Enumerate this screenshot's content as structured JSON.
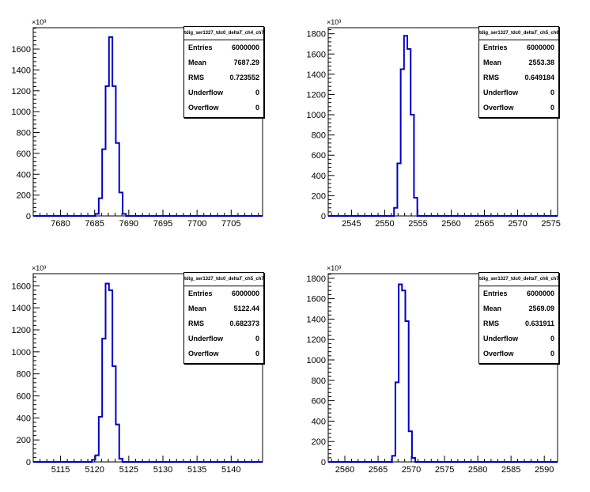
{
  "colors": {
    "histogram": "#0000c8",
    "frame": "#000000",
    "background": "#ffffff"
  },
  "chart_data": [
    {
      "type": "bar",
      "title": "tdig_ser1327_tdc0_deltaT_ch4_ch7",
      "xlim": [
        7676,
        7709.6
      ],
      "ylim": [
        0,
        1805
      ],
      "y_multiplier_label": "×10³",
      "x_ticks": [
        7680,
        7685,
        7690,
        7695,
        7700,
        7705
      ],
      "y_ticks": [
        0,
        200,
        400,
        600,
        800,
        1000,
        1200,
        1400,
        1600
      ],
      "y_tick_labels": [
        "0",
        "200",
        "400",
        "600",
        "800",
        "1000",
        "1200",
        "1400",
        "1600"
      ],
      "bin_edges": [
        7685.1,
        7685.6,
        7686.1,
        7686.6,
        7687.1,
        7687.6,
        7688.1,
        7688.6,
        7689.1,
        7689.6
      ],
      "values": [
        20,
        170,
        640,
        1245,
        1715,
        1245,
        700,
        225,
        20
      ],
      "stats": [
        {
          "key": "Entries",
          "value": "6000000"
        },
        {
          "key": "Mean",
          "value": "7687.29"
        },
        {
          "key": "RMS",
          "value": "0.723552"
        },
        {
          "key": "Underflow",
          "value": "0"
        },
        {
          "key": "Overflow",
          "value": "0"
        }
      ]
    },
    {
      "type": "bar",
      "title": "tdig_ser1327_tdc0_deltaT_ch5_ch6",
      "xlim": [
        2541.5,
        2576
      ],
      "ylim": [
        0,
        1860
      ],
      "y_multiplier_label": "×10³",
      "x_ticks": [
        2545,
        2550,
        2555,
        2560,
        2565,
        2570,
        2575
      ],
      "y_ticks": [
        0,
        200,
        400,
        600,
        800,
        1000,
        1200,
        1400,
        1600,
        1800
      ],
      "y_tick_labels": [
        "0",
        "200",
        "400",
        "600",
        "800",
        "1000",
        "1200",
        "1400",
        "1600",
        "1800"
      ],
      "bin_edges": [
        2551.4,
        2551.9,
        2552.4,
        2552.9,
        2553.4,
        2553.9,
        2554.4,
        2554.9
      ],
      "values": [
        80,
        520,
        1450,
        1780,
        1650,
        1000,
        180
      ],
      "stats": [
        {
          "key": "Entries",
          "value": "6000000"
        },
        {
          "key": "Mean",
          "value": "2553.38"
        },
        {
          "key": "RMS",
          "value": "0.649184"
        },
        {
          "key": "Underflow",
          "value": "0"
        },
        {
          "key": "Overflow",
          "value": "0"
        }
      ]
    },
    {
      "type": "bar",
      "title": "tdig_ser1327_tdc0_deltaT_ch5_ch7",
      "xlim": [
        5111,
        5144.6
      ],
      "ylim": [
        0,
        1710
      ],
      "y_multiplier_label": "×10³",
      "x_ticks": [
        5115,
        5120,
        5125,
        5130,
        5135,
        5140
      ],
      "y_ticks": [
        0,
        200,
        400,
        600,
        800,
        1000,
        1200,
        1400,
        1600
      ],
      "y_tick_labels": [
        "0",
        "200",
        "400",
        "600",
        "800",
        "1000",
        "1200",
        "1400",
        "1600"
      ],
      "bin_edges": [
        5119.6,
        5120.1,
        5120.6,
        5121.1,
        5121.6,
        5122.1,
        5122.6,
        5123.1,
        5123.6,
        5124.1
      ],
      "values": [
        20,
        60,
        410,
        1120,
        1620,
        1560,
        870,
        340,
        30
      ],
      "stats": [
        {
          "key": "Entries",
          "value": "6000000"
        },
        {
          "key": "Mean",
          "value": "5122.44"
        },
        {
          "key": "RMS",
          "value": "0.682373"
        },
        {
          "key": "Underflow",
          "value": "0"
        },
        {
          "key": "Overflow",
          "value": "0"
        }
      ]
    },
    {
      "type": "bar",
      "title": "tdig_ser1327_tdc0_deltaT_ch6_ch7",
      "xlim": [
        2557.5,
        2592
      ],
      "ylim": [
        0,
        1845
      ],
      "y_multiplier_label": "×10³",
      "x_ticks": [
        2560,
        2565,
        2570,
        2575,
        2580,
        2585,
        2590
      ],
      "y_ticks": [
        0,
        200,
        400,
        600,
        800,
        1000,
        1200,
        1400,
        1600,
        1800
      ],
      "y_tick_labels": [
        "0",
        "200",
        "400",
        "600",
        "800",
        "1000",
        "1200",
        "1400",
        "1600",
        "1800"
      ],
      "bin_edges": [
        2567.1,
        2567.6,
        2568.1,
        2568.6,
        2569.1,
        2569.6,
        2570.1,
        2570.6
      ],
      "values": [
        60,
        780,
        1740,
        1680,
        1380,
        300,
        40
      ],
      "stats": [
        {
          "key": "Entries",
          "value": "6000000"
        },
        {
          "key": "Mean",
          "value": "2569.09"
        },
        {
          "key": "RMS",
          "value": "0.631911"
        },
        {
          "key": "Underflow",
          "value": "0"
        },
        {
          "key": "Overflow",
          "value": "0"
        }
      ]
    }
  ]
}
